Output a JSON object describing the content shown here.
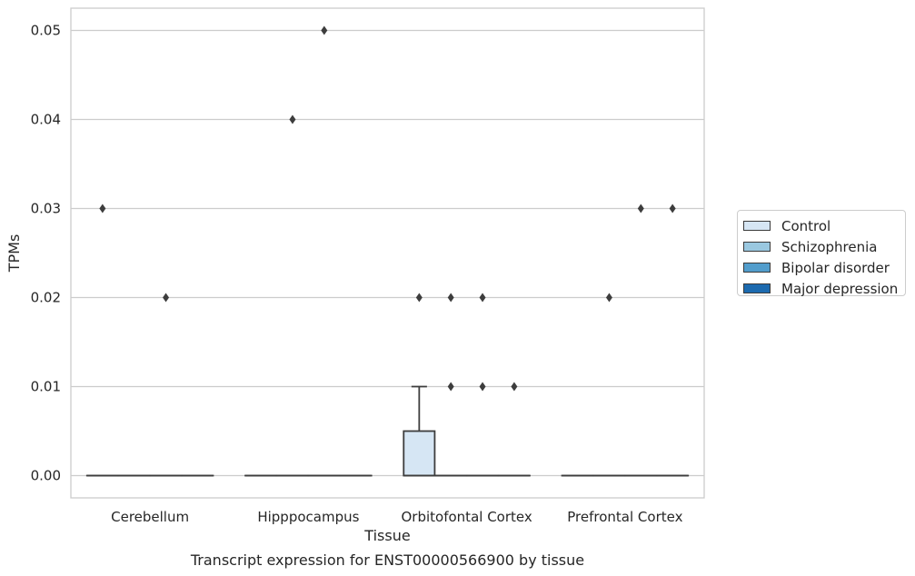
{
  "chart_data": {
    "type": "box",
    "title": "Transcript expression for ENST00000566900 by tissue",
    "xlabel": "Tissue",
    "ylabel": "TPMs",
    "ylim": [
      -0.0025,
      0.0525
    ],
    "yticks": [
      0.0,
      0.01,
      0.02,
      0.03,
      0.04,
      0.05
    ],
    "ytick_labels": [
      "0.00",
      "0.01",
      "0.02",
      "0.03",
      "0.04",
      "0.05"
    ],
    "grid": true,
    "legend_position": "right",
    "categories": [
      "Cerebellum",
      "Hipppocampus",
      "Orbitofontal Cortex",
      "Prefrontal Cortex"
    ],
    "series": [
      {
        "name": "Control",
        "color": "#d6e6f4",
        "boxes": [
          {
            "q1": 0,
            "median": 0,
            "q3": 0,
            "whisker_low": 0,
            "whisker_high": 0,
            "outliers": [
              0.03
            ]
          },
          {
            "q1": 0,
            "median": 0,
            "q3": 0,
            "whisker_low": 0,
            "whisker_high": 0,
            "outliers": []
          },
          {
            "q1": 0,
            "median": 0,
            "q3": 0.005,
            "whisker_low": 0,
            "whisker_high": 0.01,
            "outliers": [
              0.02
            ]
          },
          {
            "q1": 0,
            "median": 0,
            "q3": 0,
            "whisker_low": 0,
            "whisker_high": 0,
            "outliers": []
          }
        ]
      },
      {
        "name": "Schizophrenia",
        "color": "#9ac8e0",
        "boxes": [
          {
            "q1": 0,
            "median": 0,
            "q3": 0,
            "whisker_low": 0,
            "whisker_high": 0,
            "outliers": []
          },
          {
            "q1": 0,
            "median": 0,
            "q3": 0,
            "whisker_low": 0,
            "whisker_high": 0,
            "outliers": [
              0.04
            ]
          },
          {
            "q1": 0,
            "median": 0,
            "q3": 0,
            "whisker_low": 0,
            "whisker_high": 0,
            "outliers": [
              0.01,
              0.02
            ]
          },
          {
            "q1": 0,
            "median": 0,
            "q3": 0,
            "whisker_low": 0,
            "whisker_high": 0,
            "outliers": [
              0.02
            ]
          }
        ]
      },
      {
        "name": "Bipolar disorder",
        "color": "#529dcc",
        "boxes": [
          {
            "q1": 0,
            "median": 0,
            "q3": 0,
            "whisker_low": 0,
            "whisker_high": 0,
            "outliers": [
              0.02
            ]
          },
          {
            "q1": 0,
            "median": 0,
            "q3": 0,
            "whisker_low": 0,
            "whisker_high": 0,
            "outliers": [
              0.05
            ]
          },
          {
            "q1": 0,
            "median": 0,
            "q3": 0,
            "whisker_low": 0,
            "whisker_high": 0,
            "outliers": [
              0.01,
              0.02
            ]
          },
          {
            "q1": 0,
            "median": 0,
            "q3": 0,
            "whisker_low": 0,
            "whisker_high": 0,
            "outliers": [
              0.03
            ]
          }
        ]
      },
      {
        "name": "Major depression",
        "color": "#1c6aaf",
        "boxes": [
          {
            "q1": 0,
            "median": 0,
            "q3": 0,
            "whisker_low": 0,
            "whisker_high": 0,
            "outliers": []
          },
          {
            "q1": 0,
            "median": 0,
            "q3": 0,
            "whisker_low": 0,
            "whisker_high": 0,
            "outliers": []
          },
          {
            "q1": 0,
            "median": 0,
            "q3": 0,
            "whisker_low": 0,
            "whisker_high": 0,
            "outliers": [
              0.01
            ]
          },
          {
            "q1": 0,
            "median": 0,
            "q3": 0,
            "whisker_low": 0,
            "whisker_high": 0,
            "outliers": [
              0.03
            ]
          }
        ]
      }
    ]
  }
}
